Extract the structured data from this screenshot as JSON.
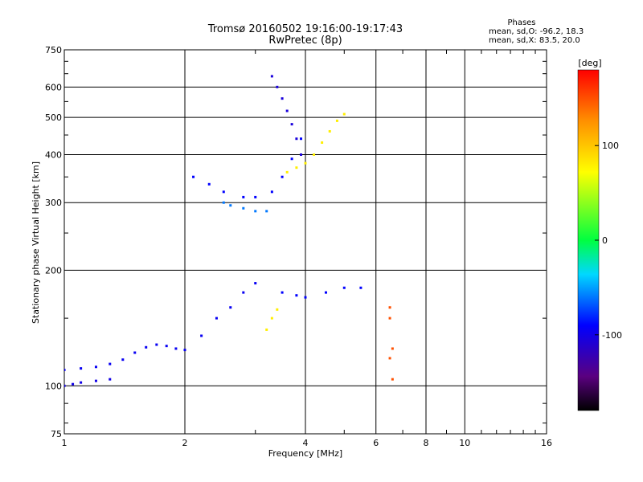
{
  "chart_data": {
    "type": "scatter",
    "title": "Tromsø 20160502 19:16:00-19:17:43",
    "subtitle": "RwPretec (8p)",
    "xlabel": "Frequency [MHz]",
    "ylabel": "Stationary phase Virtual Height [km]",
    "xscale": "log",
    "yscale": "log",
    "xlim": [
      1,
      16
    ],
    "ylim": [
      75,
      750
    ],
    "xticks": [
      1,
      2,
      4,
      6,
      8,
      10,
      16
    ],
    "xtick_labels": [
      "1",
      "2",
      "4",
      "6",
      "8",
      "10",
      "16"
    ],
    "yticks": [
      75,
      100,
      200,
      300,
      400,
      500,
      600,
      750
    ],
    "ytick_labels": [
      "75",
      "100",
      "200",
      "300",
      "400",
      "500",
      "600",
      "750"
    ],
    "grid": true,
    "phases_box": {
      "heading": "Phases",
      "line1": "mean, sd,O: -96.2, 18.3",
      "line2": "mean, sd,X:  83.5, 20.0"
    },
    "colorbar": {
      "label": "[deg]",
      "range": [
        -180,
        180
      ],
      "ticks": [
        100,
        0,
        -100
      ],
      "tick_labels": [
        "100",
        "0",
        "-100"
      ],
      "colormap": "rainbow (black-violet-blue-cyan-green-yellow-orange-red)"
    },
    "series": [
      {
        "trace": "O-mode low E/F1 trace",
        "phase_deg": -95,
        "x": [
          1.0,
          1.1,
          1.2,
          1.3,
          1.4,
          1.5,
          1.6,
          1.7,
          1.8,
          1.9,
          2.0,
          2.2,
          2.4,
          2.6,
          2.8,
          3.0
        ],
        "y": [
          110,
          111,
          112,
          114,
          117,
          122,
          126,
          128,
          127,
          125,
          124,
          135,
          150,
          160,
          175,
          185
        ]
      },
      {
        "trace": "O-mode lower echo band",
        "phase_deg": -100,
        "x": [
          1.0,
          1.05,
          1.1,
          1.2,
          1.3
        ],
        "y": [
          100,
          101,
          102,
          103,
          104
        ]
      },
      {
        "trace": "O-mode F2 trace",
        "phase_deg": -90,
        "x": [
          2.1,
          2.3,
          2.5,
          2.8,
          3.0,
          3.3,
          3.5,
          3.7,
          3.9
        ],
        "y": [
          350,
          335,
          320,
          310,
          310,
          320,
          350,
          390,
          440
        ]
      },
      {
        "trace": "O-mode cusp near foF2",
        "phase_deg": -105,
        "x": [
          3.3,
          3.4,
          3.5,
          3.6,
          3.7,
          3.8,
          3.9
        ],
        "y": [
          640,
          600,
          560,
          520,
          480,
          440,
          400
        ]
      },
      {
        "trace": "O-mode 300 km band",
        "phase_deg": -60,
        "x": [
          2.5,
          2.6,
          2.8,
          3.0,
          3.2
        ],
        "y": [
          300,
          295,
          290,
          285,
          285
        ]
      },
      {
        "trace": "X-mode F2 trace",
        "phase_deg": 80,
        "x": [
          3.6,
          3.8,
          4.0,
          4.2,
          4.4,
          4.6,
          4.8,
          5.0
        ],
        "y": [
          360,
          370,
          380,
          400,
          430,
          460,
          490,
          510
        ]
      },
      {
        "trace": "X-mode low trace",
        "phase_deg": 80,
        "x": [
          3.2,
          3.3,
          3.4
        ],
        "y": [
          140,
          150,
          158
        ]
      },
      {
        "trace": "O-mode 175 km trace",
        "phase_deg": -90,
        "x": [
          3.5,
          3.8,
          4.0,
          4.5,
          5.0,
          5.5
        ],
        "y": [
          175,
          172,
          170,
          175,
          180,
          180
        ]
      },
      {
        "trace": "scattered points near 6.5 MHz",
        "phase_deg": 150,
        "x": [
          6.5,
          6.5,
          6.6,
          6.5,
          6.6
        ],
        "y": [
          160,
          150,
          125,
          118,
          104
        ]
      }
    ]
  }
}
